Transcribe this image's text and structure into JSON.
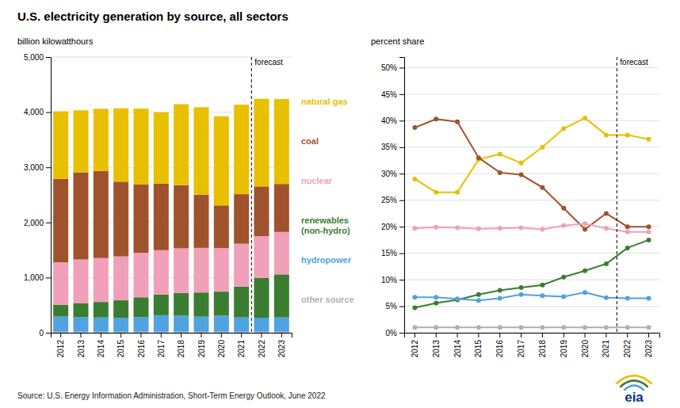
{
  "chart_data": [
    {
      "type": "bar",
      "stacked": true,
      "title": "U.S. electricity generation by source, all sectors",
      "y_label": "billion kilowatthours",
      "source": "Source: U.S. Energy Information Administration, Short-Term Energy Outlook, June 2022",
      "logo": "eia",
      "categories": [
        "2012",
        "2013",
        "2014",
        "2015",
        "2016",
        "2017",
        "2018",
        "2019",
        "2020",
        "2021",
        "2022",
        "2023"
      ],
      "series": [
        {
          "name": "other source",
          "color": "#b0b0b0",
          "values": [
            18,
            18,
            18,
            18,
            18,
            18,
            18,
            18,
            18,
            18,
            18,
            18
          ]
        },
        {
          "name": "hydropower",
          "color": "#4fa3e0",
          "values": [
            276,
            268,
            259,
            249,
            268,
            300,
            292,
            274,
            291,
            260,
            255,
            260
          ]
        },
        {
          "name": "renewables\n(non-hydro)",
          "color": "#3a7d30",
          "values": [
            214,
            253,
            281,
            321,
            357,
            374,
            413,
            438,
            436,
            558,
            720,
            780
          ]
        },
        {
          "name": "nuclear",
          "color": "#f0a0b8",
          "values": [
            769,
            789,
            797,
            797,
            805,
            805,
            808,
            809,
            790,
            778,
            760,
            770
          ]
        },
        {
          "name": "coal",
          "color": "#a0522d",
          "values": [
            1514,
            1581,
            1581,
            1355,
            1239,
            1205,
            1146,
            966,
            774,
            899,
            900,
            870
          ]
        },
        {
          "name": "natural gas",
          "color": "#e8c000",
          "values": [
            1225,
            1125,
            1126,
            1331,
            1378,
            1296,
            1468,
            1585,
            1617,
            1624,
            1590,
            1540
          ]
        }
      ],
      "ylim": [
        0,
        5000
      ],
      "yticks": [
        0,
        {
          "value": 1000,
          "label": "1,000"
        },
        {
          "value": 2000,
          "label": "2,000"
        },
        {
          "value": 3000,
          "label": "3,000"
        },
        {
          "value": 4000,
          "label": "4,000"
        },
        {
          "value": 5000,
          "label": "5,000"
        }
      ],
      "grid": true,
      "legend": "right",
      "annotations": [
        {
          "text": "forecast",
          "x": "2022"
        }
      ]
    },
    {
      "type": "line",
      "y_label": "percent share",
      "categories": [
        "2012",
        "2013",
        "2014",
        "2015",
        "2016",
        "2017",
        "2018",
        "2019",
        "2020",
        "2021",
        "2022",
        "2023"
      ],
      "series": [
        {
          "color": "#e8c000",
          "marker": "circle",
          "values": [
            29.0,
            26.5,
            26.5,
            32.7,
            33.7,
            32.0,
            35.0,
            38.5,
            40.5,
            37.3,
            37.3,
            36.5
          ]
        },
        {
          "color": "#a0522d",
          "marker": "circle",
          "values": [
            38.7,
            40.3,
            39.8,
            33.0,
            30.2,
            29.8,
            27.4,
            23.5,
            19.5,
            22.5,
            20.0,
            20.0
          ]
        },
        {
          "color": "#f0a0b8",
          "marker": "circle",
          "values": [
            19.7,
            19.9,
            19.8,
            19.6,
            19.7,
            19.8,
            19.5,
            20.2,
            20.6,
            19.7,
            19.0,
            19.0
          ]
        },
        {
          "color": "#3a7d30",
          "marker": "circle",
          "values": [
            4.7,
            5.6,
            6.2,
            7.2,
            8.0,
            8.5,
            9.0,
            10.5,
            11.7,
            13.0,
            16.0,
            17.5
          ]
        },
        {
          "color": "#4fa3e0",
          "marker": "circle",
          "values": [
            6.7,
            6.7,
            6.4,
            6.1,
            6.5,
            7.2,
            7.0,
            6.8,
            7.6,
            6.6,
            6.5,
            6.5
          ]
        },
        {
          "color": "#b0b0b0",
          "marker": "circle",
          "values": [
            1.0,
            1.0,
            1.0,
            1.0,
            1.0,
            1.0,
            1.0,
            1.0,
            1.0,
            1.0,
            1.0,
            1.0
          ]
        }
      ],
      "ylim": [
        0,
        52
      ],
      "yticks": [
        {
          "value": 0,
          "label": "0%"
        },
        {
          "value": 5,
          "label": "5%"
        },
        {
          "value": 10,
          "label": "10%"
        },
        {
          "value": 15,
          "label": "15%"
        },
        {
          "value": 20,
          "label": "20%"
        },
        {
          "value": 25,
          "label": "25%"
        },
        {
          "value": 30,
          "label": "30%"
        },
        {
          "value": 35,
          "label": "35%"
        },
        {
          "value": 40,
          "label": "40%"
        },
        {
          "value": 45,
          "label": "45%"
        },
        {
          "value": 50,
          "label": "50%"
        }
      ],
      "grid": true,
      "annotations": [
        {
          "text": "forecast",
          "x": "2022"
        }
      ]
    }
  ]
}
